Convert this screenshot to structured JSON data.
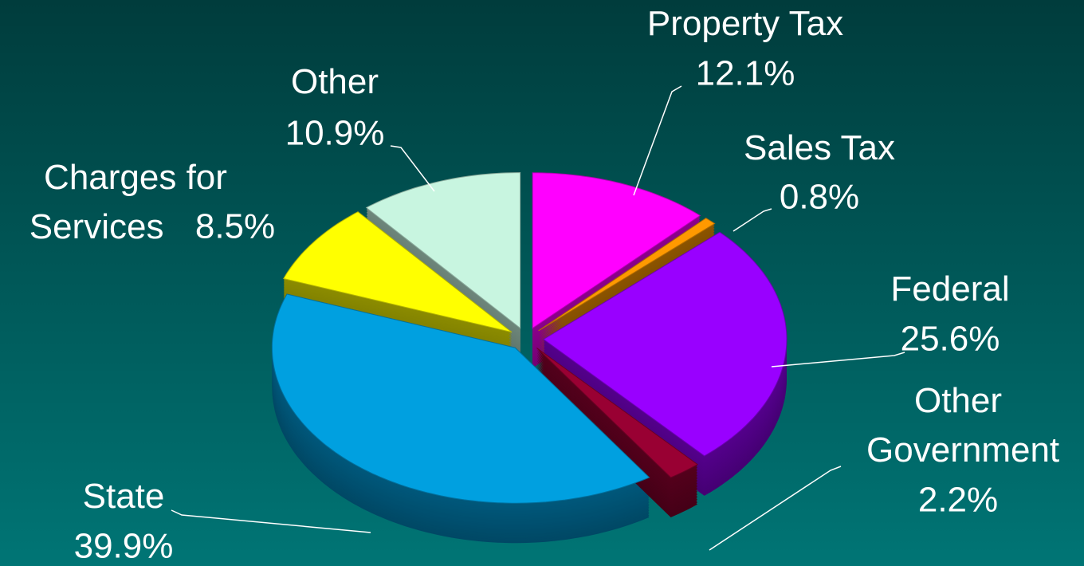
{
  "chart_data": {
    "type": "pie",
    "categories": [
      "Property Tax",
      "Sales Tax",
      "Federal",
      "Other Government",
      "State",
      "Charges for Services",
      "Other"
    ],
    "values": [
      12.1,
      0.8,
      25.6,
      2.2,
      39.9,
      8.5,
      10.9
    ],
    "value_labels": [
      "12.1%",
      "0.8%",
      "25.6%",
      "2.2%",
      "39.9%",
      "8.5%",
      "10.9%"
    ],
    "colors": [
      "#ff00ff",
      "#ff9900",
      "#9900ff",
      "#990033",
      "#00a0e0",
      "#ffff00",
      "#c8f5e0"
    ]
  }
}
